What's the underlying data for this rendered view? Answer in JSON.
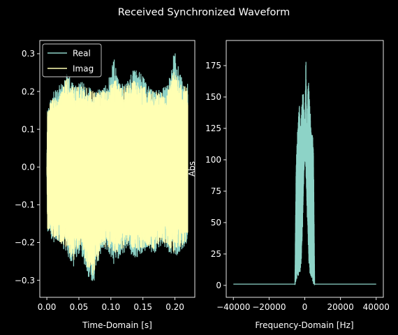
{
  "chart_data": [
    {
      "type": "line",
      "suptitle": "Received Synchronized Waveform",
      "xlabel": "Time-Domain [s]",
      "ylabel": "",
      "xlim": [
        -0.011,
        0.231
      ],
      "ylim": [
        -0.345,
        0.335
      ],
      "xticks": [
        0.0,
        0.05,
        0.1,
        0.15,
        0.2
      ],
      "xtick_labels": [
        "0.00",
        "0.05",
        "0.10",
        "0.15",
        "0.20"
      ],
      "yticks": [
        -0.3,
        -0.2,
        -0.1,
        0.0,
        0.1,
        0.2,
        0.3
      ],
      "ytick_labels": [
        "−0.3",
        "−0.2",
        "−0.1",
        "0.0",
        "0.1",
        "0.2",
        "0.3"
      ],
      "grid": false,
      "legend": "upper left",
      "series": [
        {
          "name": "Real",
          "color": "#8dd3c7",
          "x_range": [
            0.0,
            0.22
          ],
          "envelope_upper": [
            0.15,
            0.2,
            0.22,
            0.25,
            0.22,
            0.23,
            0.22,
            0.2,
            0.21,
            0.22,
            0.29,
            0.22,
            0.23,
            0.26,
            0.25,
            0.22,
            0.2,
            0.21,
            0.22,
            0.31,
            0.24,
            0.22
          ],
          "envelope_lower": [
            -0.17,
            -0.2,
            -0.21,
            -0.23,
            -0.27,
            -0.22,
            -0.29,
            -0.31,
            -0.23,
            -0.22,
            -0.26,
            -0.24,
            -0.22,
            -0.25,
            -0.23,
            -0.22,
            -0.23,
            -0.21,
            -0.22,
            -0.25,
            -0.22,
            -0.2
          ]
        },
        {
          "name": "Imag",
          "color": "#ffffb3",
          "x_range": [
            0.0,
            0.22
          ],
          "envelope_upper": [
            0.15,
            0.19,
            0.2,
            0.24,
            0.21,
            0.22,
            0.21,
            0.2,
            0.2,
            0.21,
            0.24,
            0.21,
            0.22,
            0.23,
            0.22,
            0.21,
            0.2,
            0.2,
            0.21,
            0.27,
            0.22,
            0.21
          ],
          "envelope_lower": [
            -0.16,
            -0.19,
            -0.2,
            -0.22,
            -0.25,
            -0.21,
            -0.27,
            -0.29,
            -0.22,
            -0.21,
            -0.23,
            -0.22,
            -0.21,
            -0.22,
            -0.22,
            -0.21,
            -0.22,
            -0.2,
            -0.21,
            -0.23,
            -0.21,
            -0.2
          ]
        }
      ]
    },
    {
      "type": "line",
      "xlabel": "Frequency-Domain [Hz]",
      "ylabel": "Abs",
      "xlim": [
        -44000,
        44000
      ],
      "ylim": [
        -9.5,
        195
      ],
      "xticks": [
        -40000,
        -20000,
        0,
        20000,
        40000
      ],
      "xtick_labels": [
        "−40000",
        "−20000",
        "0",
        "20000",
        "40000"
      ],
      "yticks": [
        0,
        25,
        50,
        75,
        100,
        125,
        150,
        175
      ],
      "ytick_labels": [
        "0",
        "25",
        "50",
        "75",
        "100",
        "125",
        "150",
        "175"
      ],
      "grid": false,
      "series": [
        {
          "color": "#8dd3c7",
          "x_range": [
            -40000,
            40000
          ],
          "band": [
            -5500,
            5500
          ],
          "band_upper": [
            6,
            95,
            120,
            132,
            145,
            125,
            140,
            158,
            150,
            118,
            186,
            120,
            168,
            155,
            140,
            120,
            122,
            108,
            8
          ],
          "band_lower": [
            0,
            3,
            5,
            8,
            6,
            12,
            20,
            45,
            80,
            105,
            90,
            60,
            35,
            12,
            8,
            6,
            3,
            1,
            0
          ],
          "noise_floor": 1
        }
      ]
    }
  ]
}
